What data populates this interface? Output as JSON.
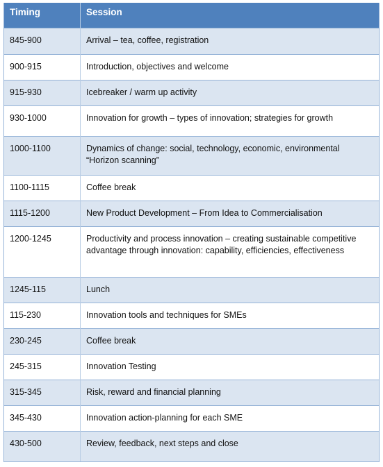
{
  "table": {
    "columns": [
      "Timing",
      "Session"
    ],
    "rows": [
      [
        "845-900",
        "Arrival – tea, coffee, registration"
      ],
      [
        "900-915",
        "Introduction, objectives and welcome"
      ],
      [
        "915-930",
        "Icebreaker / warm up activity"
      ],
      [
        "930-1000",
        "Innovation for growth – types of innovation; strategies for growth"
      ],
      [
        "1000-1100",
        "Dynamics of change: social, technology, economic, environmental\n“Horizon scanning”"
      ],
      [
        "1100-1115",
        "Coffee break"
      ],
      [
        "1115-1200",
        "New Product Development – From Idea to Commercialisation"
      ],
      [
        "1200-1245",
        "Productivity and process innovation – creating sustainable competitive advantage through innovation: capability, efficiencies, effectiveness"
      ],
      [
        "1245-115",
        "Lunch"
      ],
      [
        "115-230",
        "Innovation tools and techniques for SMEs"
      ],
      [
        "230-245",
        "Coffee break"
      ],
      [
        "245-315",
        "Innovation Testing"
      ],
      [
        "315-345",
        "Risk, reward and financial planning"
      ],
      [
        "345-430",
        "Innovation action-planning for each SME"
      ],
      [
        "430-500",
        "Review, feedback, next steps and close"
      ]
    ]
  }
}
